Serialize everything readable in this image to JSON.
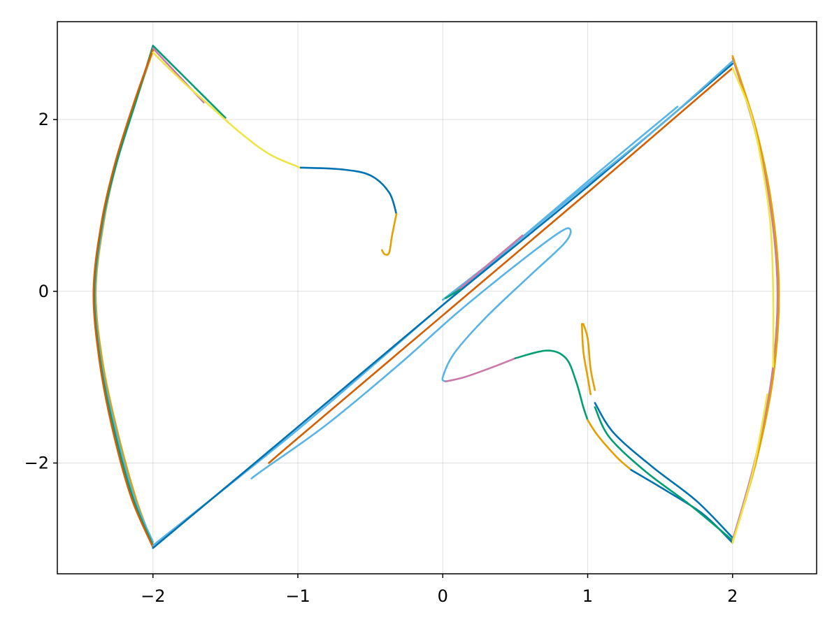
{
  "chart_data": {
    "type": "line",
    "title": "",
    "xlabel": "",
    "ylabel": "",
    "xlim": [
      -2.66,
      2.58
    ],
    "ylim": [
      -3.29,
      3.14
    ],
    "xticks": [
      -2,
      -1,
      0,
      1,
      2
    ],
    "yticks": [
      -2,
      0,
      2
    ],
    "xtick_labels": [
      "−2",
      "−1",
      "0",
      "1",
      "2"
    ],
    "ytick_labels": [
      "−2",
      "0",
      "2"
    ],
    "grid": true,
    "legend": "none",
    "series": [
      {
        "color": "#E69F00",
        "points": [
          [
            -2.0,
            2.8
          ],
          [
            -2.12,
            2.2
          ],
          [
            -2.25,
            1.5
          ],
          [
            -2.34,
            0.8
          ],
          [
            -2.395,
            0.0
          ],
          [
            -2.35,
            -0.8
          ],
          [
            -2.25,
            -1.6
          ],
          [
            -2.12,
            -2.4
          ],
          [
            -2.0,
            -2.95
          ]
        ]
      },
      {
        "color": "#56B4E9",
        "points": [
          [
            -2.0,
            2.83
          ],
          [
            -2.12,
            2.2
          ],
          [
            -2.25,
            1.5
          ],
          [
            -2.345,
            0.8
          ],
          [
            -2.4,
            0.0
          ],
          [
            -2.36,
            -0.8
          ],
          [
            -2.26,
            -1.6
          ],
          [
            -2.13,
            -2.4
          ],
          [
            -2.0,
            -2.92
          ]
        ]
      },
      {
        "color": "#009E73",
        "points": [
          [
            -2.0,
            2.86
          ],
          [
            -2.12,
            2.2
          ],
          [
            -2.25,
            1.5
          ],
          [
            -2.35,
            0.8
          ],
          [
            -2.405,
            0.0
          ],
          [
            -2.365,
            -0.8
          ],
          [
            -2.27,
            -1.6
          ],
          [
            -2.14,
            -2.4
          ],
          [
            -2.0,
            -2.96
          ]
        ]
      },
      {
        "color": "#D55E00",
        "points": [
          [
            -2.0,
            2.82
          ],
          [
            -2.13,
            2.2
          ],
          [
            -2.26,
            1.5
          ],
          [
            -2.355,
            0.8
          ],
          [
            -2.41,
            0.0
          ],
          [
            -2.37,
            -0.8
          ],
          [
            -2.28,
            -1.6
          ],
          [
            -2.15,
            -2.4
          ],
          [
            -2.0,
            -2.98
          ]
        ]
      },
      {
        "color": "#009E73",
        "points": [
          [
            -2.0,
            2.86
          ],
          [
            -1.5,
            2.02
          ]
        ]
      },
      {
        "color": "#CC79A7",
        "points": [
          [
            -2.0,
            2.83
          ],
          [
            -1.65,
            2.2
          ]
        ]
      },
      {
        "color": "#F0E442",
        "points": [
          [
            -2.0,
            2.78
          ],
          [
            -1.8,
            2.45
          ],
          [
            -1.6,
            2.15
          ],
          [
            -1.4,
            1.85
          ],
          [
            -1.2,
            1.6
          ],
          [
            -1.0,
            1.45
          ],
          [
            -0.98,
            1.44
          ]
        ]
      },
      {
        "color": "#0072B2",
        "points": [
          [
            -0.98,
            1.44
          ],
          [
            -0.7,
            1.42
          ],
          [
            -0.5,
            1.35
          ],
          [
            -0.37,
            1.15
          ],
          [
            -0.32,
            0.9
          ]
        ]
      },
      {
        "color": "#E69F00",
        "points": [
          [
            -0.32,
            0.9
          ],
          [
            -0.35,
            0.65
          ],
          [
            -0.37,
            0.45
          ],
          [
            -0.4,
            0.43
          ],
          [
            -0.42,
            0.48
          ]
        ]
      },
      {
        "color": "#56B4E9",
        "points": [
          [
            -2.0,
            -2.96
          ],
          [
            -1.0,
            -1.61
          ],
          [
            0.0,
            -0.16
          ],
          [
            1.0,
            1.28
          ],
          [
            1.62,
            2.15
          ]
        ]
      },
      {
        "color": "#0072B2",
        "points": [
          [
            -2.0,
            -2.99
          ],
          [
            -1.0,
            -1.58
          ],
          [
            0.0,
            -0.16
          ],
          [
            1.0,
            1.22
          ],
          [
            2.0,
            2.65
          ]
        ]
      },
      {
        "color": "#D55E00",
        "points": [
          [
            -1.2,
            -2.0
          ],
          [
            -1.0,
            -1.71
          ],
          [
            0.0,
            -0.28
          ],
          [
            1.0,
            1.15
          ],
          [
            2.0,
            2.6
          ]
        ]
      },
      {
        "color": "#56B4E9",
        "points": [
          [
            0.0,
            -0.1
          ],
          [
            0.5,
            0.56
          ],
          [
            1.0,
            1.25
          ],
          [
            1.5,
            1.93
          ],
          [
            2.0,
            2.68
          ]
        ]
      },
      {
        "color": "#CC79A7",
        "points": [
          [
            0.08,
            -0.02
          ],
          [
            0.55,
            0.65
          ]
        ]
      },
      {
        "color": "#009E73",
        "points": [
          [
            0.02,
            -0.08
          ],
          [
            0.12,
            0.02
          ]
        ]
      },
      {
        "color": "#56B4E9",
        "points": [
          [
            -1.32,
            -2.18
          ],
          [
            -1.24,
            -2.08
          ],
          [
            -0.8,
            -1.55
          ],
          [
            -0.3,
            -0.85
          ],
          [
            0.1,
            -0.25
          ],
          [
            0.5,
            0.3
          ],
          [
            0.8,
            0.68
          ],
          [
            0.88,
            0.72
          ],
          [
            0.84,
            0.56
          ],
          [
            0.6,
            0.18
          ],
          [
            0.3,
            -0.3
          ],
          [
            0.08,
            -0.72
          ],
          [
            0.0,
            -1.0
          ],
          [
            0.02,
            -1.05
          ]
        ]
      },
      {
        "color": "#CC79A7",
        "points": [
          [
            0.02,
            -1.05
          ],
          [
            0.15,
            -1.0
          ],
          [
            0.35,
            -0.88
          ],
          [
            0.5,
            -0.78
          ]
        ]
      },
      {
        "color": "#009E73",
        "points": [
          [
            0.5,
            -0.78
          ],
          [
            0.72,
            -0.69
          ],
          [
            0.85,
            -0.78
          ],
          [
            0.92,
            -1.05
          ],
          [
            0.97,
            -1.35
          ],
          [
            1.0,
            -1.5
          ]
        ]
      },
      {
        "color": "#E69F00",
        "points": [
          [
            1.0,
            -1.5
          ],
          [
            1.07,
            -1.68
          ],
          [
            1.2,
            -1.93
          ],
          [
            1.3,
            -2.08
          ]
        ]
      },
      {
        "color": "#0072B2",
        "points": [
          [
            1.3,
            -2.08
          ],
          [
            1.55,
            -2.33
          ],
          [
            1.8,
            -2.6
          ],
          [
            2.0,
            -2.93
          ]
        ]
      },
      {
        "color": "#E69F00",
        "points": [
          [
            0.96,
            -0.38
          ],
          [
            0.97,
            -0.7
          ],
          [
            1.0,
            -1.0
          ],
          [
            1.02,
            -1.2
          ]
        ]
      },
      {
        "color": "#E69F00",
        "points": [
          [
            0.97,
            -0.38
          ],
          [
            1.0,
            -0.55
          ],
          [
            1.02,
            -0.9
          ],
          [
            1.05,
            -1.15
          ]
        ]
      },
      {
        "color": "#009E73",
        "points": [
          [
            1.05,
            -1.35
          ],
          [
            1.15,
            -1.7
          ],
          [
            1.4,
            -2.1
          ],
          [
            1.7,
            -2.48
          ],
          [
            2.0,
            -2.9
          ]
        ]
      },
      {
        "color": "#0072B2",
        "points": [
          [
            1.05,
            -1.3
          ],
          [
            1.18,
            -1.65
          ],
          [
            1.45,
            -2.05
          ],
          [
            1.75,
            -2.44
          ],
          [
            2.0,
            -2.87
          ]
        ]
      },
      {
        "color": "#CC79A7",
        "points": [
          [
            2.0,
            2.72
          ],
          [
            2.15,
            1.9
          ],
          [
            2.26,
            1.0
          ],
          [
            2.31,
            0.0
          ],
          [
            2.27,
            -1.0
          ],
          [
            2.15,
            -2.0
          ],
          [
            2.0,
            -2.9
          ]
        ]
      },
      {
        "color": "#E69F00",
        "points": [
          [
            2.0,
            2.74
          ],
          [
            2.16,
            1.9
          ],
          [
            2.27,
            1.0
          ],
          [
            2.32,
            0.0
          ],
          [
            2.28,
            -1.0
          ],
          [
            2.16,
            -2.0
          ],
          [
            2.0,
            -2.92
          ]
        ]
      },
      {
        "color": "#F0E442",
        "points": [
          [
            2.0,
            2.6
          ],
          [
            2.12,
            2.1
          ],
          [
            2.2,
            1.5
          ],
          [
            2.26,
            0.8
          ],
          [
            2.28,
            0.0
          ],
          [
            2.28,
            -0.88
          ]
        ]
      },
      {
        "color": "#F0E442",
        "points": [
          [
            2.0,
            -2.93
          ],
          [
            2.14,
            -2.1
          ],
          [
            2.24,
            -1.2
          ]
        ]
      }
    ]
  }
}
